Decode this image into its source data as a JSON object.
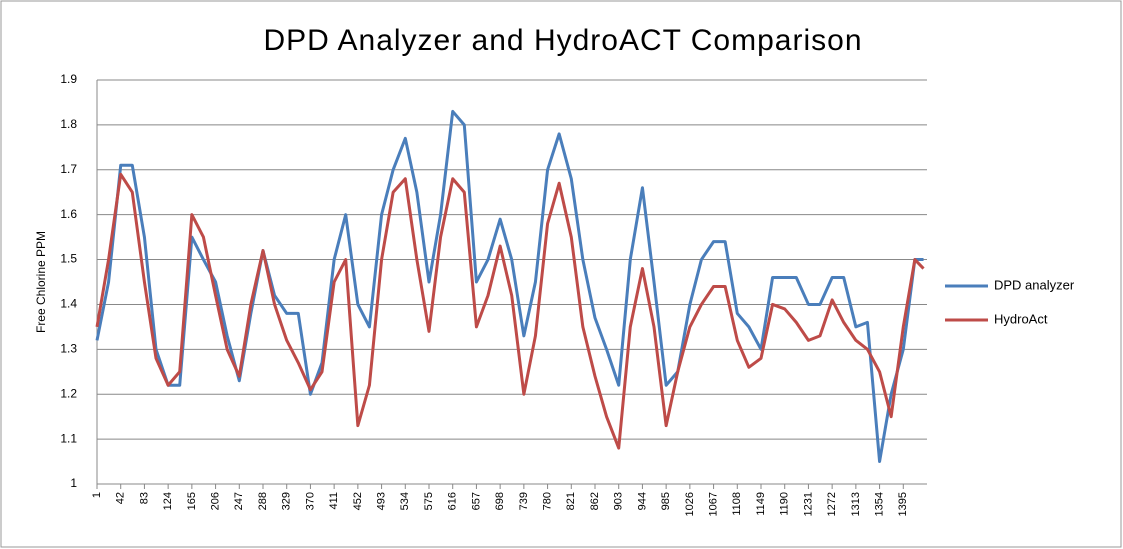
{
  "chart_data": {
    "type": "line",
    "title": "DPD Analyzer and HydroACT Comparison",
    "y_label": "Free Chlorine PPM",
    "x": [
      1,
      21,
      42,
      62,
      83,
      103,
      124,
      144,
      165,
      185,
      206,
      226,
      247,
      267,
      288,
      308,
      329,
      349,
      370,
      390,
      411,
      431,
      452,
      472,
      493,
      513,
      534,
      554,
      575,
      595,
      616,
      636,
      657,
      677,
      698,
      718,
      739,
      759,
      780,
      800,
      821,
      841,
      862,
      882,
      903,
      923,
      944,
      964,
      985,
      1005,
      1026,
      1046,
      1067,
      1087,
      1108,
      1128,
      1149,
      1169,
      1190,
      1210,
      1231,
      1251,
      1272,
      1292,
      1313,
      1333,
      1354,
      1374,
      1395,
      1415,
      1430
    ],
    "series": [
      {
        "name": "DPD analyzer",
        "color": "#4a7ebb",
        "values": [
          1.32,
          1.45,
          1.71,
          1.71,
          1.55,
          1.3,
          1.22,
          1.22,
          1.55,
          1.5,
          1.45,
          1.33,
          1.23,
          1.38,
          1.52,
          1.42,
          1.38,
          1.38,
          1.2,
          1.27,
          1.5,
          1.6,
          1.4,
          1.35,
          1.6,
          1.7,
          1.77,
          1.65,
          1.45,
          1.6,
          1.83,
          1.8,
          1.45,
          1.5,
          1.59,
          1.5,
          1.33,
          1.45,
          1.7,
          1.78,
          1.68,
          1.5,
          1.37,
          1.3,
          1.22,
          1.5,
          1.66,
          1.45,
          1.22,
          1.25,
          1.4,
          1.5,
          1.54,
          1.54,
          1.38,
          1.35,
          1.3,
          1.46,
          1.46,
          1.46,
          1.4,
          1.4,
          1.46,
          1.46,
          1.35,
          1.36,
          1.05,
          1.2,
          1.3,
          1.5,
          1.5
        ]
      },
      {
        "name": "HydroAct",
        "color": "#be4b48",
        "values": [
          1.35,
          1.5,
          1.69,
          1.65,
          1.45,
          1.28,
          1.22,
          1.25,
          1.6,
          1.55,
          1.42,
          1.3,
          1.24,
          1.4,
          1.52,
          1.4,
          1.32,
          1.27,
          1.21,
          1.25,
          1.45,
          1.5,
          1.13,
          1.22,
          1.5,
          1.65,
          1.68,
          1.5,
          1.34,
          1.55,
          1.68,
          1.65,
          1.35,
          1.42,
          1.53,
          1.42,
          1.2,
          1.33,
          1.58,
          1.67,
          1.55,
          1.35,
          1.24,
          1.15,
          1.08,
          1.35,
          1.48,
          1.35,
          1.13,
          1.25,
          1.35,
          1.4,
          1.44,
          1.44,
          1.32,
          1.26,
          1.28,
          1.4,
          1.39,
          1.36,
          1.32,
          1.33,
          1.41,
          1.36,
          1.32,
          1.3,
          1.25,
          1.15,
          1.35,
          1.5,
          1.48
        ]
      }
    ],
    "xlim": [
      1,
      1436
    ],
    "xticks": [
      1,
      42,
      83,
      124,
      165,
      206,
      247,
      288,
      329,
      370,
      411,
      452,
      493,
      534,
      575,
      616,
      657,
      698,
      739,
      780,
      821,
      862,
      903,
      944,
      985,
      1026,
      1067,
      1108,
      1149,
      1190,
      1231,
      1272,
      1313,
      1354,
      1395
    ],
    "ylim": [
      1,
      1.9
    ],
    "yticks": [
      1,
      1.1,
      1.2,
      1.3,
      1.4,
      1.5,
      1.6,
      1.7,
      1.8,
      1.9
    ],
    "grid": true,
    "legend": "right"
  }
}
